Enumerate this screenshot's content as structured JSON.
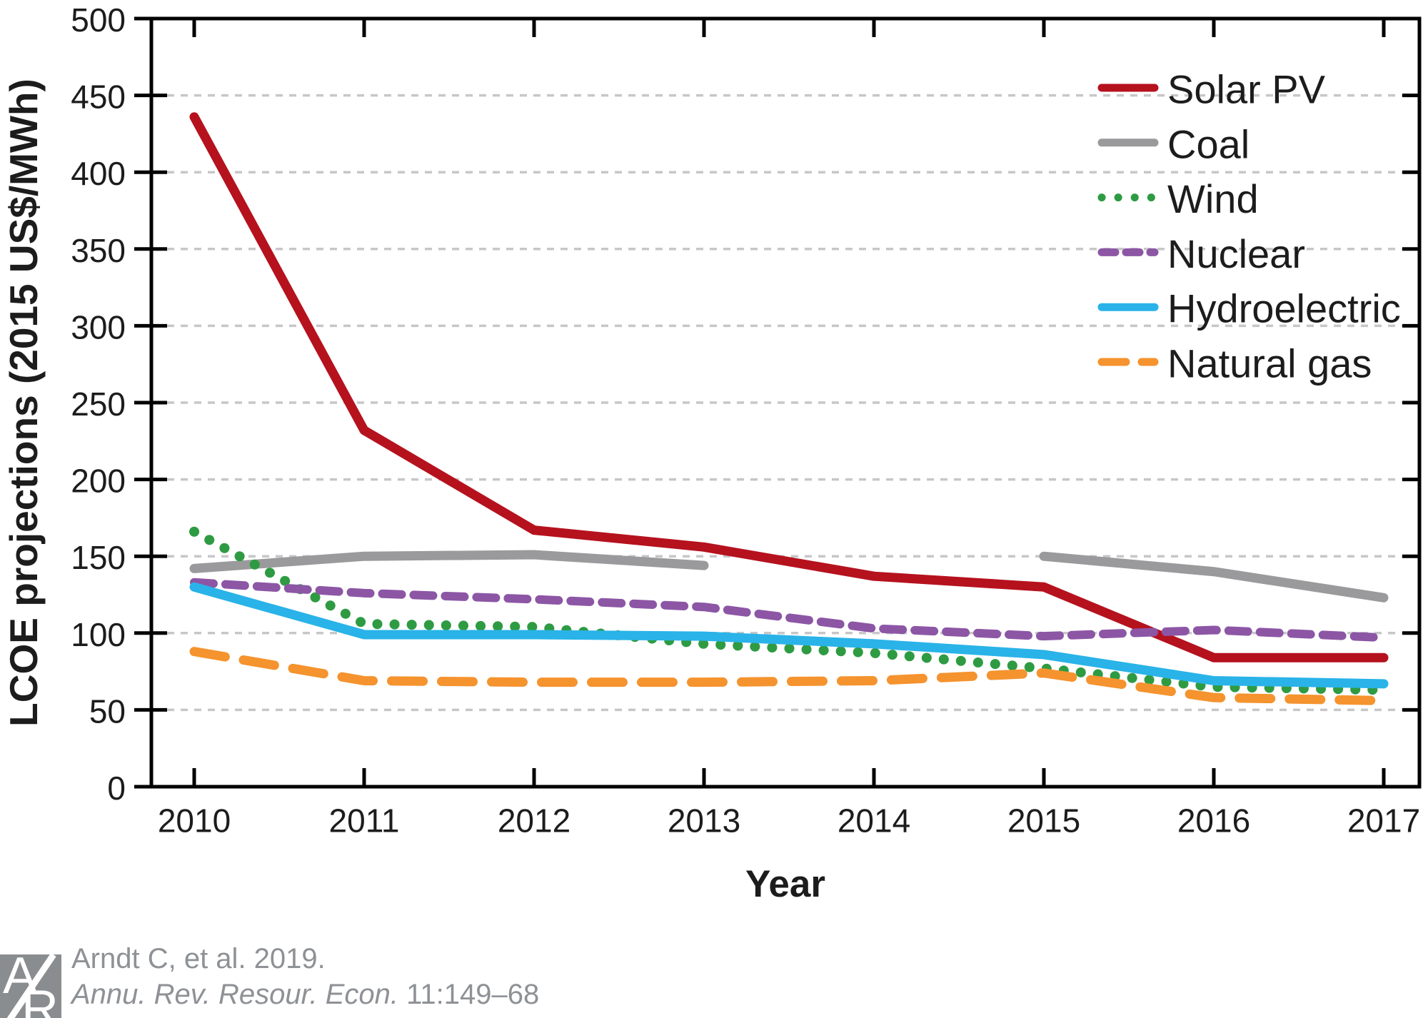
{
  "chart_data": {
    "type": "line",
    "title": "",
    "xlabel": "Year",
    "ylabel": "LCOE projections (2015 US$/MWh)",
    "x": [
      2010,
      2011,
      2012,
      2013,
      2014,
      2015,
      2016,
      2017
    ],
    "ylim": [
      0,
      500
    ],
    "yticks": [
      0,
      50,
      100,
      150,
      200,
      250,
      300,
      350,
      400,
      450,
      500
    ],
    "grid": "horizontal-dashed",
    "legend_position": "upper-right-inside",
    "series": [
      {
        "name": "Solar PV",
        "color": "#b5121e",
        "style": "solid",
        "values": [
          436,
          232,
          167,
          156,
          137,
          130,
          84,
          84
        ]
      },
      {
        "name": "Coal",
        "color": "#9a9a9c",
        "style": "solid",
        "values": [
          142,
          150,
          151,
          144,
          null,
          150,
          140,
          123
        ]
      },
      {
        "name": "Wind",
        "color": "#2e9b43",
        "style": "dotted",
        "values": [
          166,
          106,
          104,
          93,
          87,
          77,
          65,
          63
        ]
      },
      {
        "name": "Nuclear",
        "color": "#8c56a5",
        "style": "dashed",
        "values": [
          133,
          126,
          122,
          117,
          103,
          98,
          102,
          97
        ]
      },
      {
        "name": "Hydroelectric",
        "color": "#29b3e8",
        "style": "solid",
        "values": [
          130,
          99,
          99,
          98,
          93,
          86,
          69,
          67
        ]
      },
      {
        "name": "Natural gas",
        "color": "#f5932e",
        "style": "long-dash",
        "values": [
          88,
          69,
          68,
          68,
          69,
          74,
          58,
          56
        ]
      }
    ]
  },
  "colors": {
    "axis": "#000000",
    "grid": "#c7c7c9",
    "tick_label": "#1c1c1c",
    "footer_text": "#8e9195",
    "logo_bg": "#8a8d90"
  },
  "footer": {
    "logo_top_letter": "A",
    "logo_bottom_letter": "R",
    "citation_line1": "Arndt C, et al. 2019.",
    "citation_journal": "Annu. Rev. Resour. Econ.",
    "citation_volume": " 11:149–68"
  }
}
